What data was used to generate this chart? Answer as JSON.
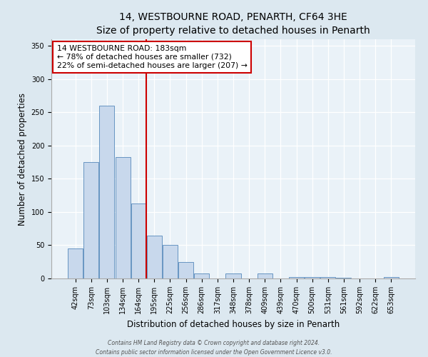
{
  "title": "14, WESTBOURNE ROAD, PENARTH, CF64 3HE",
  "subtitle": "Size of property relative to detached houses in Penarth",
  "xlabel": "Distribution of detached houses by size in Penarth",
  "ylabel": "Number of detached properties",
  "bar_labels": [
    "42sqm",
    "73sqm",
    "103sqm",
    "134sqm",
    "164sqm",
    "195sqm",
    "225sqm",
    "256sqm",
    "286sqm",
    "317sqm",
    "348sqm",
    "378sqm",
    "409sqm",
    "439sqm",
    "470sqm",
    "500sqm",
    "531sqm",
    "561sqm",
    "592sqm",
    "622sqm",
    "653sqm"
  ],
  "bar_values": [
    45,
    175,
    260,
    183,
    113,
    65,
    50,
    25,
    8,
    0,
    8,
    0,
    7,
    0,
    2,
    2,
    2,
    1,
    0,
    0,
    2
  ],
  "bar_color": "#c8d8ec",
  "bar_edge_color": "#5588bb",
  "vline_color": "#cc0000",
  "annotation_title": "14 WESTBOURNE ROAD: 183sqm",
  "annotation_line1": "← 78% of detached houses are smaller (732)",
  "annotation_line2": "22% of semi-detached houses are larger (207) →",
  "annotation_box_color": "#ffffff",
  "annotation_box_edge": "#cc0000",
  "ylim": [
    0,
    360
  ],
  "yticks": [
    0,
    50,
    100,
    150,
    200,
    250,
    300,
    350
  ],
  "bg_color": "#dce8f0",
  "plot_bg_color": "#eaf2f8",
  "footer_line1": "Contains HM Land Registry data © Crown copyright and database right 2024.",
  "footer_line2": "Contains public sector information licensed under the Open Government Licence v3.0.",
  "title_fontsize": 10,
  "axis_label_fontsize": 8.5,
  "tick_fontsize": 7,
  "footer_fontsize": 5.5,
  "ann_fontsize": 7.8
}
